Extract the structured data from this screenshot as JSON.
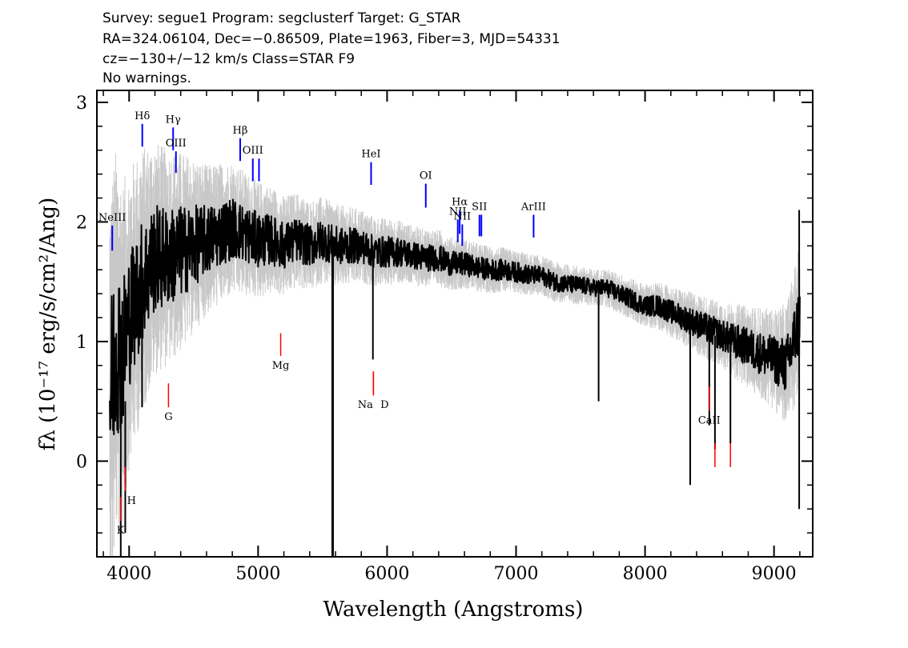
{
  "header": {
    "line1": "Survey: segue1 Program: segclusterf Target: G_STAR",
    "line2": "RA=324.06104, Dec=−0.86509, Plate=1963, Fiber=3, MJD=54331",
    "line3": "cz=−130+/−12 km/s Class=STAR F9",
    "line4": "No warnings."
  },
  "chart_data": {
    "type": "line",
    "xlabel": "Wavelength (Angstroms)",
    "ylabel": "fλ (10⁻¹⁷ erg/s/cm²/Ang)",
    "xlim": [
      3750,
      9300
    ],
    "ylim": [
      -0.8,
      3.1
    ],
    "x_ticks": [
      4000,
      5000,
      6000,
      7000,
      8000,
      9000
    ],
    "x_tick_labels": [
      "4000",
      "5000",
      "6000",
      "7000",
      "8000",
      "9000"
    ],
    "y_ticks": [
      0,
      1,
      2,
      3
    ],
    "y_tick_labels": [
      "0",
      "1",
      "2",
      "3"
    ],
    "grid": false,
    "series": [
      {
        "role": "flux",
        "color": "#000000",
        "x": [
          3850,
          3900,
          3950,
          4000,
          4100,
          4200,
          4300,
          4400,
          4500,
          4600,
          4700,
          4800,
          4900,
          5000,
          5100,
          5200,
          5300,
          5400,
          5500,
          5600,
          5700,
          5800,
          5900,
          6000,
          6100,
          6200,
          6300,
          6400,
          6500,
          6600,
          6700,
          6800,
          6900,
          7000,
          7100,
          7200,
          7300,
          7400,
          7500,
          7600,
          7700,
          7800,
          7900,
          8000,
          8100,
          8200,
          8300,
          8400,
          8500,
          8600,
          8700,
          8800,
          8900,
          9000,
          9100,
          9200
        ],
        "y": [
          0.5,
          1.0,
          0.9,
          1.2,
          1.5,
          1.7,
          1.7,
          1.75,
          1.8,
          1.85,
          1.9,
          1.95,
          1.9,
          1.85,
          1.85,
          1.8,
          1.85,
          1.8,
          1.85,
          1.8,
          1.8,
          1.8,
          1.75,
          1.75,
          1.75,
          1.72,
          1.7,
          1.7,
          1.65,
          1.65,
          1.62,
          1.6,
          1.6,
          1.58,
          1.56,
          1.55,
          1.5,
          1.48,
          1.47,
          1.45,
          1.45,
          1.4,
          1.35,
          1.3,
          1.3,
          1.25,
          1.2,
          1.15,
          1.1,
          1.05,
          1.0,
          0.95,
          0.9,
          0.85,
          0.8,
          1.2
        ]
      },
      {
        "role": "error",
        "color": "#c8c8c8",
        "x": [
          3850,
          4000,
          4200,
          4400,
          4600,
          4800,
          5000,
          5200,
          5400,
          5600,
          5800,
          6000,
          6200,
          6400,
          6600,
          6800,
          7000,
          7200,
          7400,
          7600,
          7800,
          8000,
          8200,
          8400,
          8600,
          8800,
          9000,
          9200
        ],
        "y": [
          1.3,
          0.9,
          0.7,
          0.6,
          0.45,
          0.4,
          0.35,
          0.3,
          0.27,
          0.25,
          0.22,
          0.2,
          0.18,
          0.17,
          0.15,
          0.14,
          0.13,
          0.12,
          0.12,
          0.11,
          0.12,
          0.13,
          0.15,
          0.18,
          0.2,
          0.25,
          0.3,
          0.45
        ]
      }
    ],
    "features": [
      {
        "x": 5578,
        "y_bottom": -0.8,
        "y_top": 1.7
      },
      {
        "x": 3935,
        "y_bottom": -0.8,
        "y_top": 0.4
      },
      {
        "x": 3970,
        "y_bottom": -0.6,
        "y_top": 0.5
      },
      {
        "x": 4100,
        "y_bottom": 0.45,
        "y_top": 1.6
      },
      {
        "x": 5890,
        "y_bottom": 0.85,
        "y_top": 1.8
      },
      {
        "x": 7640,
        "y_bottom": 0.5,
        "y_top": 1.45
      },
      {
        "x": 8350,
        "y_bottom": -0.2,
        "y_top": 1.15
      },
      {
        "x": 8498,
        "y_bottom": 0.3,
        "y_top": 1.1
      },
      {
        "x": 8542,
        "y_bottom": 0.1,
        "y_top": 1.05
      },
      {
        "x": 8662,
        "y_bottom": 0.15,
        "y_top": 1.0
      },
      {
        "x": 9195,
        "y_bottom": -0.4,
        "y_top": 2.1
      }
    ],
    "emission_lines": [
      {
        "name": "NeIII",
        "x": 3869,
        "y_low": 1.76,
        "y_high": 1.97,
        "color": "#0000ff"
      },
      {
        "name": "Hδ",
        "x": 4102,
        "y_low": 2.63,
        "y_high": 2.82,
        "color": "#0000ff"
      },
      {
        "name": "Hγ",
        "x": 4341,
        "y_low": 2.6,
        "y_high": 2.79,
        "color": "#0000ff"
      },
      {
        "name": "OIII",
        "x": 4363,
        "y_low": 2.41,
        "y_high": 2.59,
        "color": "#0000ff"
      },
      {
        "name": "Hβ",
        "x": 4861,
        "y_low": 2.51,
        "y_high": 2.7,
        "color": "#0000ff"
      },
      {
        "name": "OIII",
        "x": 4959,
        "y_low": 2.34,
        "y_high": 2.53,
        "color": "#0000ff"
      },
      {
        "name": "",
        "x": 5007,
        "y_low": 2.34,
        "y_high": 2.53,
        "color": "#0000ff"
      },
      {
        "name": "HeI",
        "x": 5876,
        "y_low": 2.31,
        "y_high": 2.5,
        "color": "#0000ff"
      },
      {
        "name": "OI",
        "x": 6300,
        "y_low": 2.12,
        "y_high": 2.32,
        "color": "#0000ff"
      },
      {
        "name": "NII",
        "x": 6548,
        "y_low": 1.83,
        "y_high": 2.02,
        "color": "#0000ff"
      },
      {
        "name": "Hα",
        "x": 6563,
        "y_low": 1.9,
        "y_high": 2.1,
        "color": "#0000ff"
      },
      {
        "name": "NII",
        "x": 6583,
        "y_low": 1.8,
        "y_high": 1.98,
        "color": "#0000ff"
      },
      {
        "name": "SII",
        "x": 6716,
        "y_low": 1.88,
        "y_high": 2.06,
        "color": "#0000ff"
      },
      {
        "name": "",
        "x": 6731,
        "y_low": 1.88,
        "y_high": 2.06,
        "color": "#0000ff"
      },
      {
        "name": "ArIII",
        "x": 7136,
        "y_low": 1.87,
        "y_high": 2.06,
        "color": "#0000ff"
      }
    ],
    "absorption_lines": [
      {
        "name": "K",
        "x": 3934,
        "y_low": -0.5,
        "y_high": -0.3,
        "color": "#ff0000"
      },
      {
        "name": "H",
        "x": 3969,
        "y_low": -0.25,
        "y_high": -0.05,
        "color": "#ff0000"
      },
      {
        "name": "G",
        "x": 4305,
        "y_low": 0.45,
        "y_high": 0.65,
        "color": "#ff0000"
      },
      {
        "name": "Mg",
        "x": 5175,
        "y_low": 0.88,
        "y_high": 1.07,
        "color": "#ff0000"
      },
      {
        "name": "Na",
        "x": 5894,
        "y_low": 0.55,
        "y_high": 0.75,
        "color": "#ff0000"
      },
      {
        "name": "D",
        "x": 5894,
        "y_low": 0.55,
        "y_high": 0.75,
        "color": "#ff0000"
      },
      {
        "name": "CaII",
        "x": 8498,
        "y_low": 0.42,
        "y_high": 0.62,
        "color": "#ff0000"
      },
      {
        "name": "",
        "x": 8542,
        "y_low": -0.05,
        "y_high": 0.15,
        "color": "#ff0000"
      },
      {
        "name": "",
        "x": 8662,
        "y_low": -0.05,
        "y_high": 0.15,
        "color": "#ff0000"
      }
    ]
  }
}
